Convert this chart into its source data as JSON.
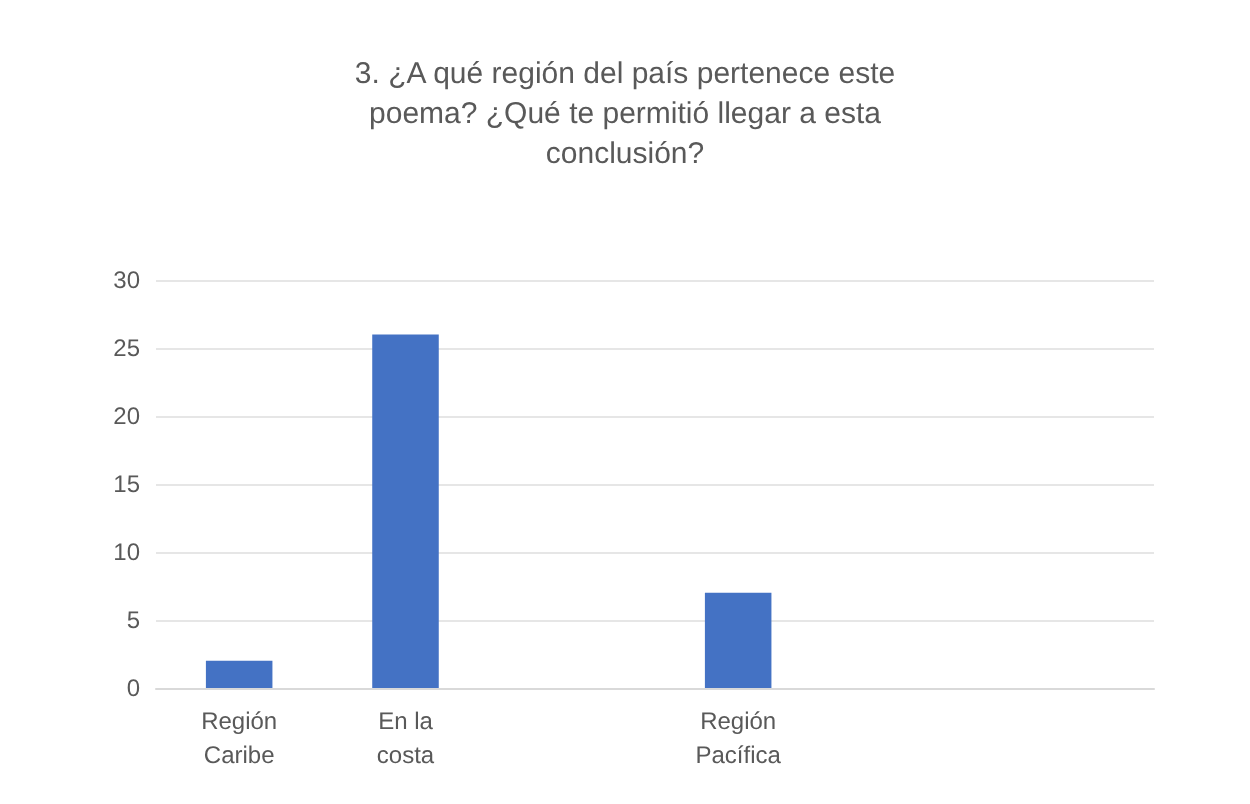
{
  "chart_data": {
    "type": "bar",
    "title": "3. ¿A qué región del país pertenece este\npoema? ¿Qué te permitió llegar a esta\nconclusión?",
    "categories": [
      "Región\nCaribe",
      "En la\ncosta",
      null,
      "Región\nPacífica",
      null,
      null
    ],
    "values": [
      2,
      26,
      null,
      7,
      null,
      null
    ],
    "color": "#4472c4",
    "ylim": [
      0,
      30
    ],
    "yticks": [
      0,
      5,
      10,
      15,
      20,
      25,
      30
    ],
    "grid": "y"
  }
}
